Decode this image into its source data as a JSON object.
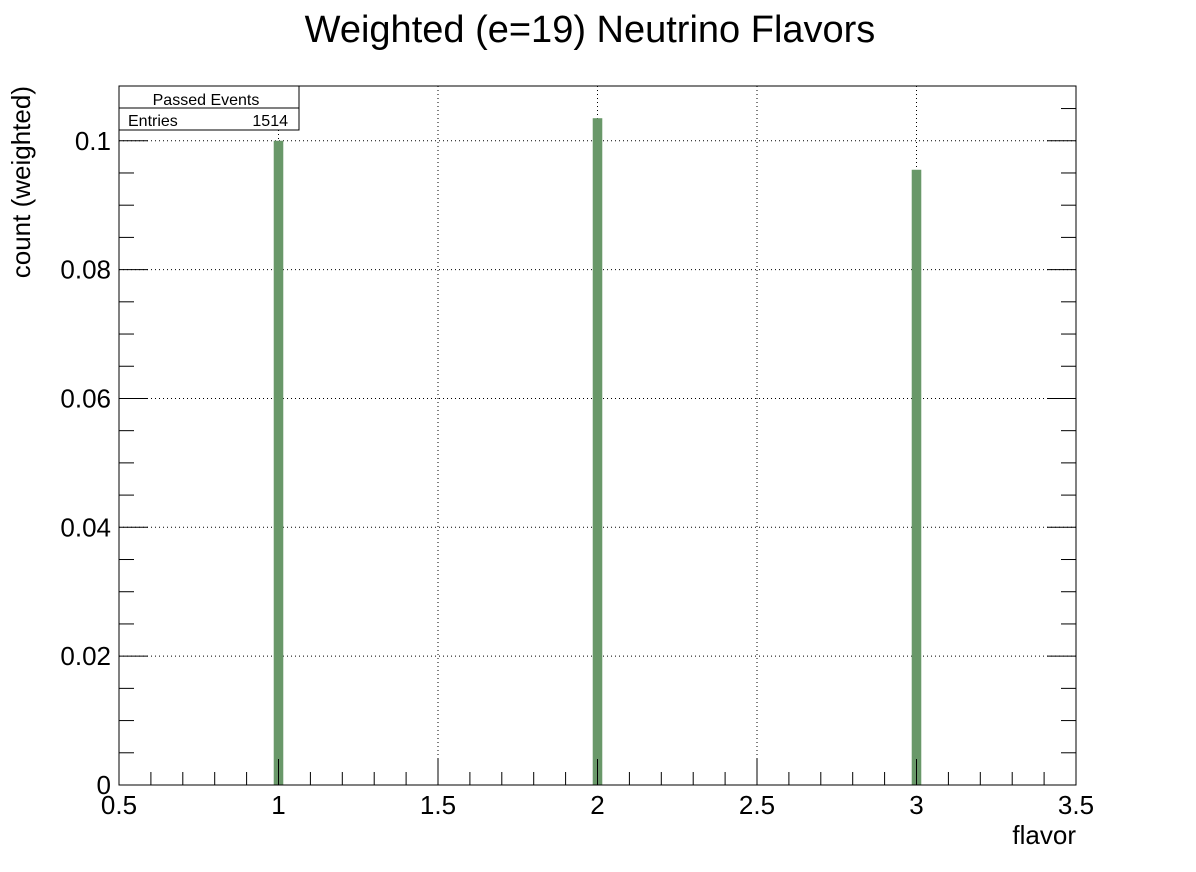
{
  "chart_data": {
    "type": "bar",
    "title": "Weighted (e=19) Neutrino Flavors",
    "xlabel": "flavor",
    "ylabel": "count (weighted)",
    "x": [
      1,
      2,
      3
    ],
    "values": [
      0.1,
      0.1035,
      0.0955
    ],
    "xlim": [
      0.5,
      3.5
    ],
    "ylim": [
      0,
      0.1085
    ],
    "x_ticks": [
      "0.5",
      "1",
      "1.5",
      "2",
      "2.5",
      "3",
      "3.5"
    ],
    "y_ticks": [
      "0",
      "0.02",
      "0.04",
      "0.06",
      "0.08",
      "0.1"
    ],
    "grid": true,
    "bar_color": "#699869",
    "stats_box": {
      "title": "Passed Events",
      "entries_label": "Entries",
      "entries_value": "1514"
    }
  }
}
